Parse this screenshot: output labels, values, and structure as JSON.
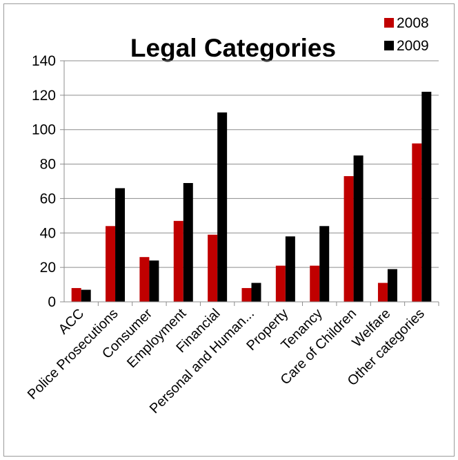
{
  "chart_data": {
    "type": "bar",
    "title": "Legal Categories",
    "categories": [
      "ACC",
      "Police Prosecutions",
      "Consumer",
      "Employment",
      "Financial",
      "Personal and Human...",
      "Property",
      "Tenancy",
      "Care of Children",
      "Welfare",
      "Other categories"
    ],
    "series": [
      {
        "name": "2008",
        "color": "#c00000",
        "values": [
          8,
          44,
          26,
          47,
          39,
          8,
          21,
          21,
          73,
          11,
          92
        ]
      },
      {
        "name": "2009",
        "color": "#000000",
        "values": [
          7,
          66,
          24,
          69,
          110,
          11,
          38,
          44,
          85,
          19,
          122
        ]
      }
    ],
    "yticks": [
      "0",
      "20",
      "40",
      "60",
      "80",
      "100",
      "120",
      "140"
    ],
    "ylim": [
      0,
      140
    ],
    "grid": true,
    "legend": "top-right",
    "xlabel": "",
    "ylabel": ""
  }
}
